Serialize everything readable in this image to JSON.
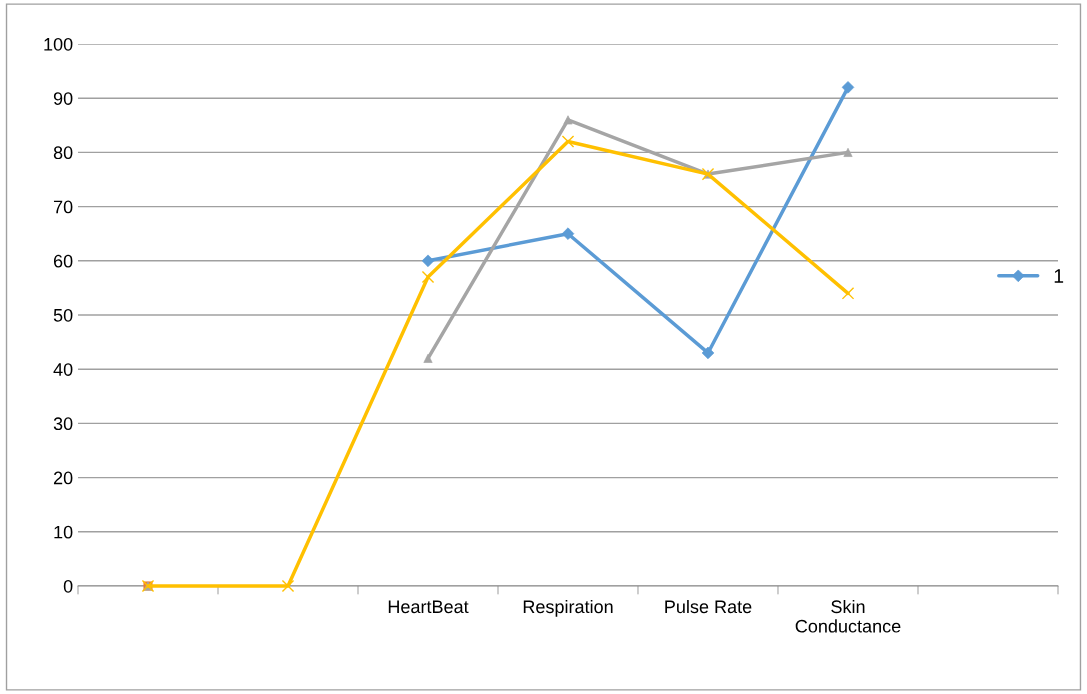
{
  "chart_data": {
    "type": "line",
    "categories": [
      null,
      null,
      "HeartBeat",
      "Respiration",
      "Pulse Rate",
      "Skin\nConductance",
      null
    ],
    "ylim": [
      0,
      100
    ],
    "yticks": [
      0,
      10,
      20,
      30,
      40,
      50,
      60,
      70,
      80,
      90,
      100
    ],
    "grid": "y",
    "legend": "right",
    "series": [
      {
        "name": "1",
        "color": "#5b9bd5",
        "marker": "diamond",
        "values": [
          null,
          null,
          60,
          65,
          43,
          92,
          null
        ]
      },
      {
        "color": "#ed7d31",
        "marker": "square",
        "values": [
          0,
          null,
          null,
          null,
          null,
          null,
          null
        ]
      },
      {
        "color": "#a5a5a5",
        "marker": "triangle",
        "values": [
          0,
          null,
          42,
          86,
          76,
          80,
          null
        ]
      },
      {
        "color": "#ffc000",
        "marker": "cross",
        "values": [
          0,
          0,
          57,
          82,
          76,
          54,
          null
        ]
      }
    ]
  }
}
